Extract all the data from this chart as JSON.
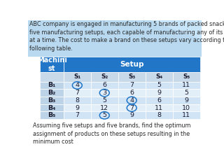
{
  "title_text": "ABC company is engaged in manufacturing 5 brands of packed snacks. It has\nfive manufacturing setups, each capable of manufacturing any of its brands one\nat a time. The cost to make a brand on these setups vary according to the\nfollowing table.",
  "footer_text": "  Assuming five setups and five brands, find the optimum\n  assignment of products on these setups resulting in the\n  minimum cost",
  "header_col1": "Machini\nst",
  "header_col2": "Setup",
  "col_headers": [
    "S₁",
    "S₂",
    "S₃",
    "S₄",
    "S₅"
  ],
  "row_headers": [
    "B₁",
    "B₂",
    "B₃",
    "B₄",
    "B₅"
  ],
  "table_data": [
    [
      4,
      6,
      7,
      5,
      11
    ],
    [
      7,
      3,
      6,
      9,
      5
    ],
    [
      8,
      5,
      4,
      6,
      9
    ],
    [
      9,
      12,
      7,
      11,
      10
    ],
    [
      7,
      5,
      9,
      8,
      11
    ]
  ],
  "circled_cells": [
    [
      0,
      0
    ],
    [
      1,
      1
    ],
    [
      2,
      2
    ],
    [
      3,
      2
    ],
    [
      4,
      1
    ]
  ],
  "header_bg": "#2176C7",
  "header_text_color": "#FFFFFF",
  "row_odd_bg": "#D0E4F5",
  "row_even_bg": "#E2EEF8",
  "col1_bg": "#BDD4E8",
  "subheader_bg": "#C8D9EA",
  "table_text_color": "#1A1A2E",
  "circle_color": "#2176C7",
  "body_text_color": "#2A2A2A",
  "bg_color": "#FFFFFF",
  "slide_bg_color": "#B8D9F0",
  "font_size_body": 5.8,
  "font_size_table": 6.8,
  "font_size_header": 7.5
}
